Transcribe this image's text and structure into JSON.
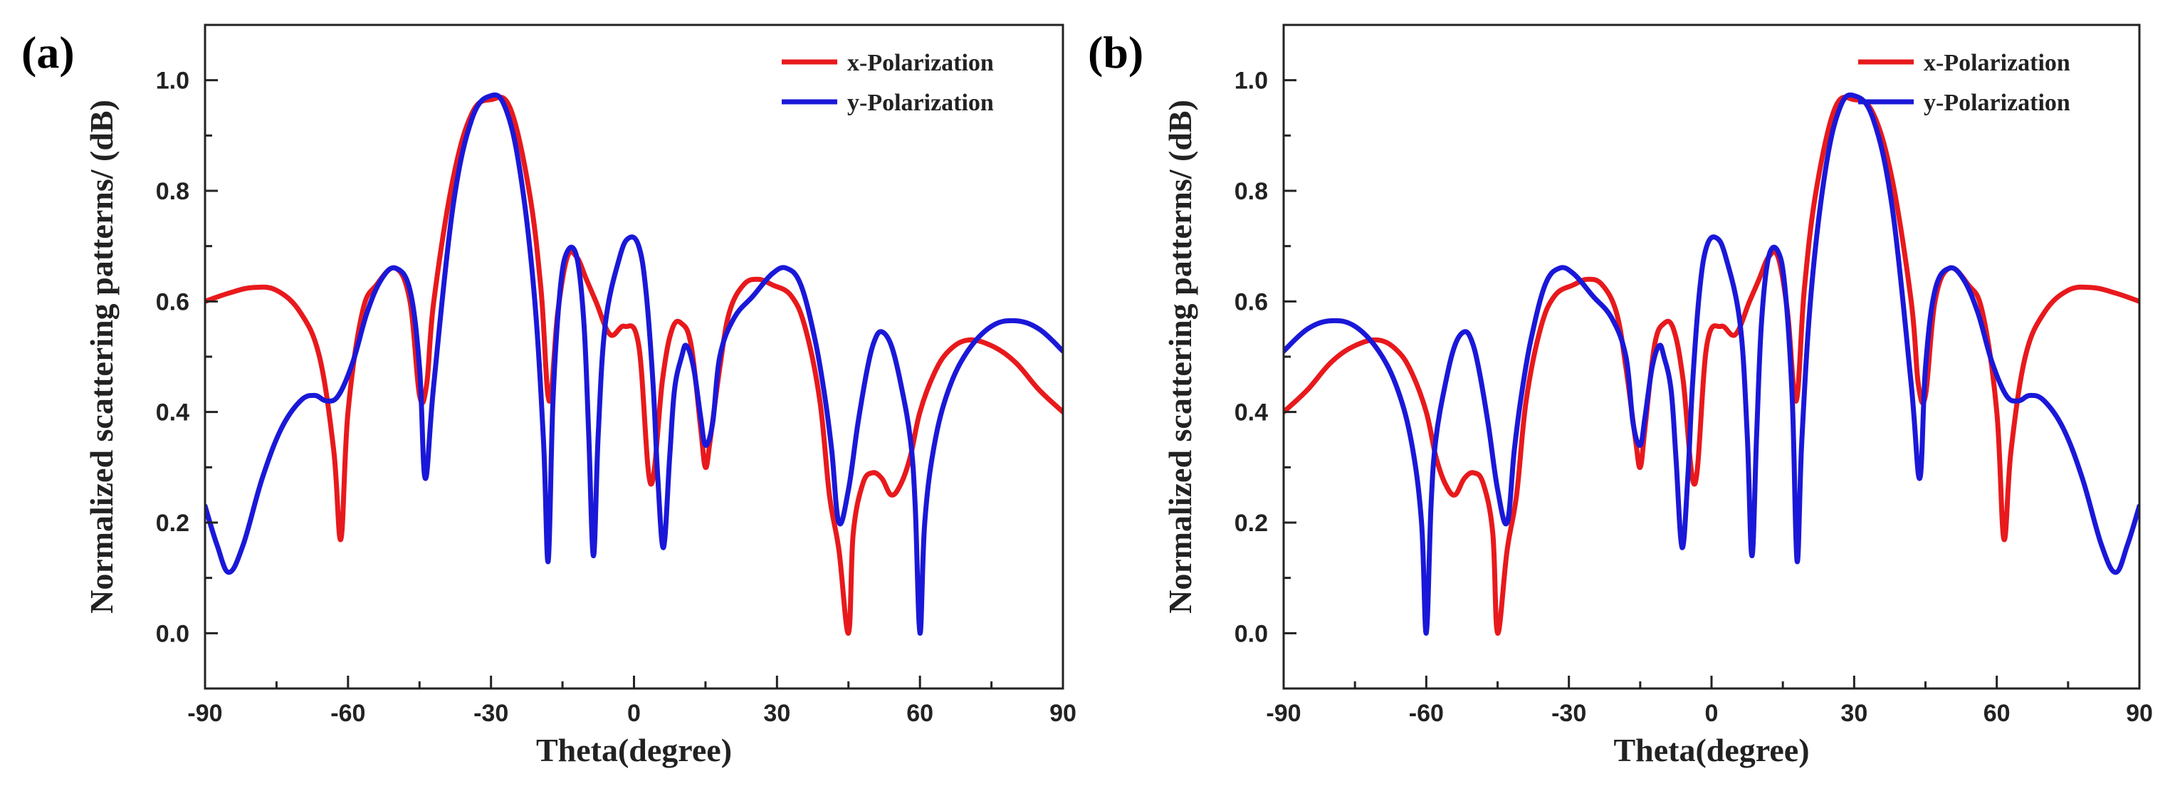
{
  "chart_data": [
    {
      "type": "line",
      "panel_label": "(a)",
      "xlabel": "Theta(degree)",
      "ylabel": "Normalized scattering patterns/ (dB)",
      "xlim": [
        -90,
        90
      ],
      "ylim": [
        -0.1,
        1.1
      ],
      "xticks": [
        -90,
        -60,
        -30,
        0,
        30,
        60,
        90
      ],
      "xtick_labels": [
        "-90",
        "-60",
        "-30",
        "0",
        "30",
        "60",
        "90"
      ],
      "yticks": [
        0.0,
        0.2,
        0.4,
        0.6,
        0.8,
        1.0
      ],
      "ytick_labels": [
        "0.0",
        "0.2",
        "0.4",
        "0.6",
        "0.8",
        "1.0"
      ],
      "legend_position": "top-right",
      "series": [
        {
          "name": "x-Polarization",
          "color": "#e8191c",
          "x": [
            -90,
            -85,
            -80,
            -75,
            -70,
            -66,
            -63,
            -61.5,
            -60,
            -57,
            -54,
            -50,
            -47,
            -45,
            -43.5,
            -42,
            -38,
            -34,
            -30,
            -26,
            -22,
            -19.5,
            -17.8,
            -16,
            -14,
            -12,
            -10,
            -8,
            -5,
            -2,
            1,
            3.5,
            6,
            8,
            10,
            12,
            14,
            15,
            16,
            18,
            20,
            23,
            26,
            29,
            33,
            36,
            39,
            41,
            43,
            45,
            46,
            48,
            50,
            52,
            54,
            56,
            58,
            60,
            63,
            66,
            70,
            75,
            80,
            85,
            90
          ],
          "y": [
            0.6,
            0.615,
            0.625,
            0.62,
            0.58,
            0.5,
            0.33,
            0.17,
            0.4,
            0.58,
            0.63,
            0.66,
            0.6,
            0.43,
            0.45,
            0.6,
            0.82,
            0.94,
            0.965,
            0.95,
            0.8,
            0.62,
            0.42,
            0.58,
            0.68,
            0.68,
            0.64,
            0.6,
            0.54,
            0.555,
            0.52,
            0.27,
            0.46,
            0.55,
            0.56,
            0.52,
            0.37,
            0.3,
            0.35,
            0.48,
            0.58,
            0.63,
            0.64,
            0.63,
            0.61,
            0.55,
            0.42,
            0.25,
            0.15,
            0.0,
            0.18,
            0.27,
            0.29,
            0.28,
            0.25,
            0.27,
            0.32,
            0.4,
            0.47,
            0.51,
            0.53,
            0.52,
            0.49,
            0.44,
            0.4
          ]
        },
        {
          "name": "y-Polarization",
          "color": "#1a18d8",
          "x": [
            -90,
            -87.5,
            -85,
            -82,
            -78,
            -74,
            -70,
            -67,
            -64.5,
            -62,
            -59,
            -56,
            -53,
            -50,
            -47,
            -45,
            -43.8,
            -42,
            -38,
            -34,
            -30,
            -27,
            -24,
            -21,
            -19,
            -18,
            -17,
            -15.5,
            -14,
            -12,
            -10.5,
            -9.5,
            -8.5,
            -7.5,
            -6,
            -3,
            -1,
            1,
            2.5,
            4,
            5,
            6.2,
            7.5,
            8.5,
            10,
            11,
            12.5,
            14,
            15,
            16.5,
            18,
            21,
            25,
            29,
            32,
            35,
            38,
            40,
            41.5,
            43,
            45,
            47,
            49,
            50.5,
            52,
            54,
            56,
            58,
            59,
            60,
            61,
            63,
            66,
            70,
            75,
            80,
            85,
            90
          ],
          "y": [
            0.23,
            0.16,
            0.11,
            0.16,
            0.28,
            0.37,
            0.42,
            0.43,
            0.42,
            0.43,
            0.49,
            0.58,
            0.64,
            0.66,
            0.62,
            0.48,
            0.28,
            0.45,
            0.77,
            0.93,
            0.972,
            0.95,
            0.84,
            0.62,
            0.35,
            0.13,
            0.42,
            0.62,
            0.69,
            0.68,
            0.56,
            0.36,
            0.14,
            0.36,
            0.56,
            0.68,
            0.715,
            0.7,
            0.62,
            0.45,
            0.28,
            0.155,
            0.32,
            0.44,
            0.5,
            0.52,
            0.48,
            0.39,
            0.34,
            0.38,
            0.5,
            0.57,
            0.61,
            0.65,
            0.66,
            0.63,
            0.53,
            0.43,
            0.33,
            0.2,
            0.26,
            0.38,
            0.48,
            0.53,
            0.545,
            0.52,
            0.45,
            0.35,
            0.23,
            0.0,
            0.2,
            0.34,
            0.44,
            0.51,
            0.555,
            0.565,
            0.55,
            0.51
          ]
        }
      ]
    },
    {
      "type": "line",
      "panel_label": "(b)",
      "xlabel": "Theta(degree)",
      "ylabel": "Normalized scattering patterns/ (dB)",
      "xlim": [
        -90,
        90
      ],
      "ylim": [
        -0.1,
        1.1
      ],
      "xticks": [
        -90,
        -60,
        -30,
        0,
        30,
        60,
        90
      ],
      "xtick_labels": [
        "-90",
        "-60",
        "-30",
        "0",
        "30",
        "60",
        "90"
      ],
      "yticks": [
        0.0,
        0.2,
        0.4,
        0.6,
        0.8,
        1.0
      ],
      "ytick_labels": [
        "0.0",
        "0.2",
        "0.4",
        "0.6",
        "0.8",
        "1.0"
      ],
      "legend_position": "top-right",
      "series": [
        {
          "name": "x-Polarization",
          "color": "#e8191c",
          "x": [
            -90,
            -85,
            -80,
            -75,
            -70,
            -66,
            -63,
            -60,
            -58,
            -56,
            -54,
            -52,
            -50,
            -48,
            -46,
            -45,
            -43,
            -41,
            -39,
            -36,
            -33,
            -29,
            -26,
            -23,
            -20,
            -18,
            -16,
            -15,
            -14,
            -12,
            -10,
            -8,
            -6,
            -3.5,
            -1,
            2,
            5,
            8,
            10,
            12,
            14,
            16,
            17.8,
            19.5,
            22,
            26,
            30,
            34,
            38,
            42,
            43.5,
            45,
            47,
            50,
            54,
            57,
            60,
            61.5,
            63,
            66,
            70,
            75,
            80,
            85,
            90
          ],
          "y": [
            0.4,
            0.44,
            0.49,
            0.52,
            0.53,
            0.51,
            0.47,
            0.4,
            0.32,
            0.27,
            0.25,
            0.28,
            0.29,
            0.27,
            0.18,
            0.0,
            0.15,
            0.25,
            0.42,
            0.55,
            0.61,
            0.63,
            0.64,
            0.63,
            0.58,
            0.48,
            0.35,
            0.3,
            0.37,
            0.52,
            0.56,
            0.55,
            0.46,
            0.27,
            0.52,
            0.555,
            0.54,
            0.6,
            0.64,
            0.68,
            0.68,
            0.58,
            0.42,
            0.62,
            0.8,
            0.95,
            0.965,
            0.94,
            0.82,
            0.6,
            0.45,
            0.43,
            0.6,
            0.66,
            0.63,
            0.58,
            0.4,
            0.17,
            0.33,
            0.5,
            0.58,
            0.62,
            0.625,
            0.615,
            0.6
          ]
        },
        {
          "name": "y-Polarization",
          "color": "#1a18d8",
          "x": [
            -90,
            -85,
            -80,
            -75,
            -70,
            -66,
            -63,
            -61,
            -60,
            -59,
            -58,
            -56,
            -54,
            -52,
            -50.5,
            -49,
            -47,
            -45,
            -43,
            -41.5,
            -40,
            -38,
            -35,
            -32,
            -29,
            -25,
            -21,
            -18,
            -16.5,
            -15,
            -14,
            -12.5,
            -11,
            -10,
            -8.5,
            -7.5,
            -6.2,
            -5,
            -4,
            -2.5,
            -1,
            1,
            3,
            6,
            7.5,
            8.5,
            9.5,
            10.5,
            12,
            14,
            15.5,
            17,
            18,
            19,
            21,
            24,
            27,
            30,
            34,
            38,
            42,
            43.8,
            45,
            47,
            50,
            53,
            56,
            59,
            62,
            64.5,
            67,
            70,
            74,
            78,
            82,
            85,
            87.5,
            90
          ],
          "y": [
            0.51,
            0.55,
            0.565,
            0.555,
            0.51,
            0.44,
            0.34,
            0.2,
            0.0,
            0.23,
            0.35,
            0.45,
            0.52,
            0.545,
            0.53,
            0.48,
            0.38,
            0.26,
            0.2,
            0.33,
            0.43,
            0.53,
            0.63,
            0.66,
            0.65,
            0.61,
            0.57,
            0.5,
            0.38,
            0.34,
            0.39,
            0.48,
            0.52,
            0.5,
            0.44,
            0.32,
            0.155,
            0.28,
            0.45,
            0.62,
            0.7,
            0.715,
            0.68,
            0.56,
            0.36,
            0.14,
            0.36,
            0.56,
            0.68,
            0.69,
            0.62,
            0.42,
            0.13,
            0.35,
            0.62,
            0.84,
            0.95,
            0.972,
            0.93,
            0.77,
            0.45,
            0.28,
            0.48,
            0.62,
            0.66,
            0.64,
            0.58,
            0.49,
            0.43,
            0.42,
            0.43,
            0.42,
            0.37,
            0.28,
            0.16,
            0.11,
            0.16,
            0.23
          ]
        }
      ]
    }
  ]
}
